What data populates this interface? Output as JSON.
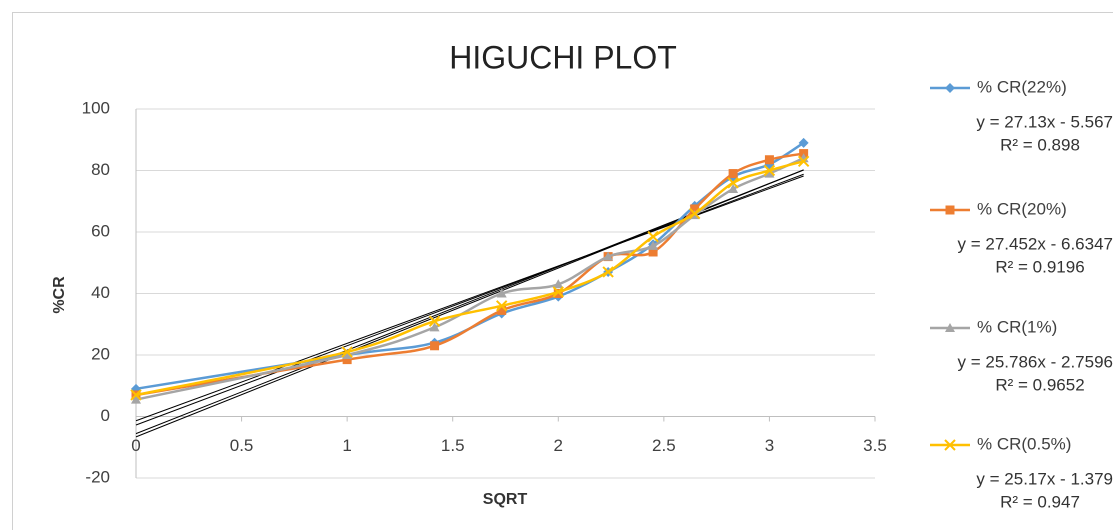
{
  "chart_data": {
    "type": "scatter",
    "title": "HIGUCHI PLOT",
    "xlabel": "SQRT",
    "ylabel": "%CR",
    "x": [
      0,
      1,
      1.414,
      1.732,
      2,
      2.236,
      2.449,
      2.646,
      2.828,
      3,
      3.162
    ],
    "xlim": [
      0,
      3.5
    ],
    "xticks": [
      0,
      0.5,
      1,
      1.5,
      2,
      2.5,
      3,
      3.5
    ],
    "ylim": [
      -20,
      100
    ],
    "yticks": [
      -20,
      0,
      20,
      40,
      60,
      80,
      100
    ],
    "grid": true,
    "legend": "right",
    "series": [
      {
        "name": "% CR(22%)",
        "color": "#5b9bd5",
        "marker": "diamond",
        "values": [
          9,
          20,
          24,
          33.5,
          39,
          47,
          56,
          68.5,
          78,
          82,
          89
        ],
        "trendline": {
          "slope": 27.13,
          "intercept": -5.567,
          "equation": "y = 27.13x - 5.567",
          "r2": 0.898,
          "r2_label": "R² = 0.898"
        }
      },
      {
        "name": "% CR(20%)",
        "color": "#ed7d31",
        "marker": "square",
        "values": [
          7,
          18.5,
          23,
          34.5,
          40,
          52,
          53.5,
          67.5,
          79,
          83.5,
          85.5
        ],
        "trendline": {
          "slope": 27.452,
          "intercept": -6.6347,
          "equation": "y = 27.452x - 6.6347",
          "r2": 0.9196,
          "r2_label": "R² = 0.9196"
        }
      },
      {
        "name": "% CR(1%)",
        "color": "#a5a5a5",
        "marker": "triangle",
        "values": [
          5.5,
          20,
          29,
          40,
          43,
          52,
          55.5,
          65.5,
          74,
          79,
          84
        ],
        "trendline": {
          "slope": 25.786,
          "intercept": -2.7596,
          "equation": "y = 25.786x - 2.7596",
          "r2": 0.9652,
          "r2_label": "R² = 0.9652"
        }
      },
      {
        "name": "% CR(0.5%)",
        "color": "#ffc000",
        "marker": "x",
        "values": [
          7,
          21,
          31,
          36,
          40.5,
          47,
          58.5,
          66,
          76,
          80,
          83
        ],
        "trendline": {
          "slope": 25.17,
          "intercept": -1.379,
          "equation": "y = 25.17x - 1.379",
          "r2": 0.947,
          "r2_label": "R² = 0.947"
        }
      }
    ]
  }
}
